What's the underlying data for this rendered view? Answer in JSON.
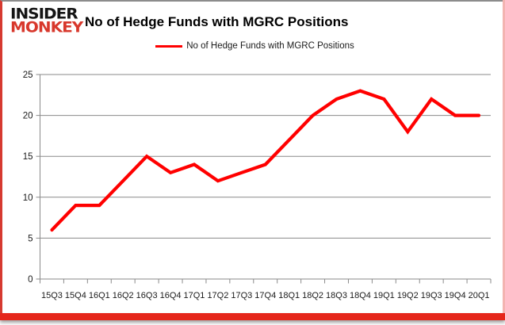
{
  "header": {
    "logo_line1": "INSIDER",
    "logo_line2": "MONKEY",
    "title": "No of Hedge Funds with MGRC Positions"
  },
  "legend": {
    "label": "No of Hedge Funds with MGRC Positions",
    "line_color": "#FF0000"
  },
  "colors": {
    "series_red": "#FF0000",
    "gridline_gray": "#8a8a8a",
    "frame_red": "#e5261b",
    "logo_red": "#d8382c",
    "logo_black": "#151515",
    "axis_text": "#1a1a1a"
  },
  "chart_data": {
    "type": "line",
    "title": "No of Hedge Funds with MGRC Positions",
    "categories": [
      "15Q3",
      "15Q4",
      "16Q1",
      "16Q2",
      "16Q3",
      "16Q4",
      "17Q1",
      "17Q2",
      "17Q3",
      "17Q4",
      "18Q1",
      "18Q2",
      "18Q3",
      "18Q4",
      "19Q1",
      "19Q2",
      "19Q3",
      "19Q4",
      "20Q1"
    ],
    "series": [
      {
        "name": "No of Hedge Funds with MGRC Positions",
        "color": "#FF0000",
        "values": [
          6,
          9,
          9,
          12,
          15,
          13,
          14,
          12,
          13,
          14,
          17,
          20,
          22,
          23,
          22,
          18,
          22,
          20,
          20
        ]
      }
    ],
    "xlabel": "",
    "ylabel": "",
    "ylim": [
      0,
      25
    ],
    "yticks": [
      0,
      5,
      10,
      15,
      20,
      25
    ],
    "grid": true,
    "legend_position": "top"
  }
}
